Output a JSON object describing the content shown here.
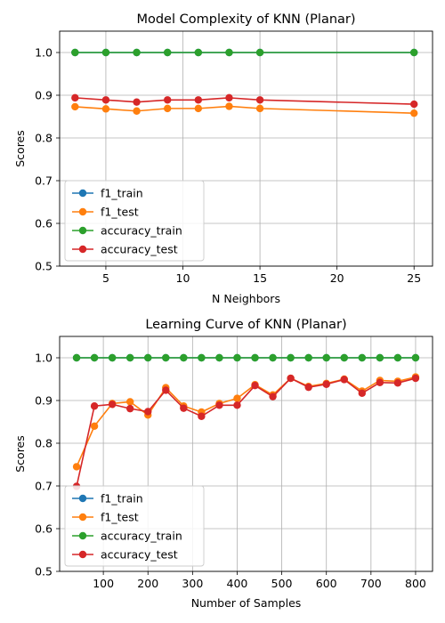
{
  "colors": {
    "f1_train": "#1f77b4",
    "f1_test": "#ff7f0e",
    "accuracy_train": "#2ca02c",
    "accuracy_test": "#d62728",
    "grid": "#b0b0b0"
  },
  "chart_data": [
    {
      "type": "line",
      "title": "Model Complexity of KNN (Planar)",
      "xlabel": "N Neighbors",
      "ylabel": "Scores",
      "xlim": [
        2,
        26.2
      ],
      "ylim": [
        0.5,
        1.05
      ],
      "xticks": [
        5,
        10,
        15,
        20,
        25
      ],
      "yticks": [
        0.5,
        0.6,
        0.7,
        0.8,
        0.9,
        1.0
      ],
      "grid": true,
      "legend_position": "lower-left",
      "x": [
        3,
        5,
        7,
        9,
        11,
        13,
        15,
        25
      ],
      "series": [
        {
          "name": "f1_train",
          "color_key": "f1_train",
          "values": [
            1.0,
            1.0,
            1.0,
            1.0,
            1.0,
            1.0,
            1.0,
            1.0
          ]
        },
        {
          "name": "f1_test",
          "color_key": "f1_test",
          "values": [
            0.873,
            0.868,
            0.863,
            0.869,
            0.869,
            0.874,
            0.869,
            0.858
          ]
        },
        {
          "name": "accuracy_train",
          "color_key": "accuracy_train",
          "values": [
            1.0,
            1.0,
            1.0,
            1.0,
            1.0,
            1.0,
            1.0,
            1.0
          ]
        },
        {
          "name": "accuracy_test",
          "color_key": "accuracy_test",
          "values": [
            0.894,
            0.889,
            0.884,
            0.889,
            0.889,
            0.894,
            0.889,
            0.879
          ]
        }
      ]
    },
    {
      "type": "line",
      "title": "Learning Curve of KNN (Planar)",
      "xlabel": "Number of Samples",
      "ylabel": "Scores",
      "xlim": [
        2,
        838
      ],
      "ylim": [
        0.5,
        1.05
      ],
      "xticks": [
        100,
        200,
        300,
        400,
        500,
        600,
        700,
        800
      ],
      "yticks": [
        0.5,
        0.6,
        0.7,
        0.8,
        0.9,
        1.0
      ],
      "grid": true,
      "legend_position": "lower-left",
      "x": [
        40,
        80,
        120,
        160,
        200,
        240,
        280,
        320,
        360,
        400,
        440,
        480,
        520,
        560,
        600,
        640,
        680,
        720,
        760,
        800
      ],
      "series": [
        {
          "name": "f1_train",
          "color_key": "f1_train",
          "values": [
            1,
            1,
            1,
            1,
            1,
            1,
            1,
            1,
            1,
            1,
            1,
            1,
            1,
            1,
            1,
            1,
            1,
            1,
            1,
            1
          ]
        },
        {
          "name": "f1_test",
          "color_key": "f1_test",
          "values": [
            0.745,
            0.84,
            0.893,
            0.897,
            0.866,
            0.93,
            0.887,
            0.873,
            0.893,
            0.905,
            0.937,
            0.913,
            0.952,
            0.933,
            0.94,
            0.95,
            0.922,
            0.947,
            0.945,
            0.955
          ]
        },
        {
          "name": "accuracy_train",
          "color_key": "accuracy_train",
          "values": [
            1,
            1,
            1,
            1,
            1,
            1,
            1,
            1,
            1,
            1,
            1,
            1,
            1,
            1,
            1,
            1,
            1,
            1,
            1,
            1
          ]
        },
        {
          "name": "accuracy_test",
          "color_key": "accuracy_test",
          "values": [
            0.699,
            0.887,
            0.891,
            0.881,
            0.874,
            0.924,
            0.882,
            0.863,
            0.889,
            0.889,
            0.935,
            0.909,
            0.952,
            0.931,
            0.938,
            0.949,
            0.917,
            0.942,
            0.941,
            0.952
          ]
        }
      ]
    }
  ]
}
